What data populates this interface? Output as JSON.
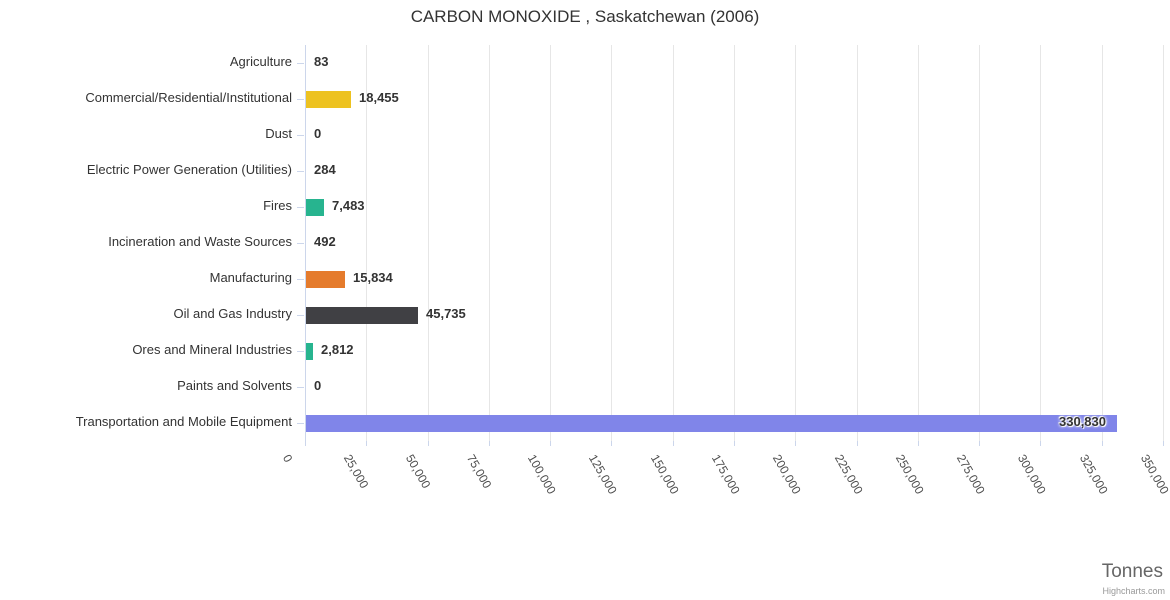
{
  "chart_data": {
    "type": "bar",
    "orientation": "horizontal",
    "title": "CARBON MONOXIDE , Saskatchewan (2006)",
    "xlabel": "Tonnes",
    "ylabel": "",
    "categories": [
      "Agriculture",
      "Commercial/Residential/Institutional",
      "Dust",
      "Electric Power Generation (Utilities)",
      "Fires",
      "Incineration and Waste Sources",
      "Manufacturing",
      "Oil and Gas Industry",
      "Ores and Mineral Industries",
      "Paints and Solvents",
      "Transportation and Mobile Equipment"
    ],
    "values": [
      83,
      18455,
      0,
      284,
      7483,
      492,
      15834,
      45735,
      2812,
      0,
      330830
    ],
    "value_labels": [
      "83",
      "18,455",
      "0",
      "284",
      "7,483",
      "492",
      "15,834",
      "45,735",
      "2,812",
      "0",
      "330,830"
    ],
    "bar_colors": [
      "#8085e9",
      "#edc220",
      "#8085e9",
      "#8085e9",
      "#27b48f",
      "#8085e9",
      "#e57b2c",
      "#404044",
      "#27b48f",
      "#8085e9",
      "#8085e9"
    ],
    "xlim": [
      0,
      350000
    ],
    "tick_step": 25000,
    "tick_labels": [
      "0",
      "25,000",
      "50,000",
      "75,000",
      "100,000",
      "125,000",
      "150,000",
      "175,000",
      "200,000",
      "225,000",
      "250,000",
      "275,000",
      "300,000",
      "325,000",
      "350,000"
    ],
    "grid": true,
    "legend": false,
    "credits": "Highcharts.com",
    "colors": {
      "title": "#333333",
      "category_label": "#333333",
      "value_label": "#333333",
      "tick_label": "#4d4d4d",
      "axis_line": "#ccd6eb",
      "grid_line": "#e6e6e6",
      "tick_mark": "#ccd6eb",
      "axis_title": "#666666",
      "credits": "#999999",
      "background": "#ffffff"
    }
  }
}
